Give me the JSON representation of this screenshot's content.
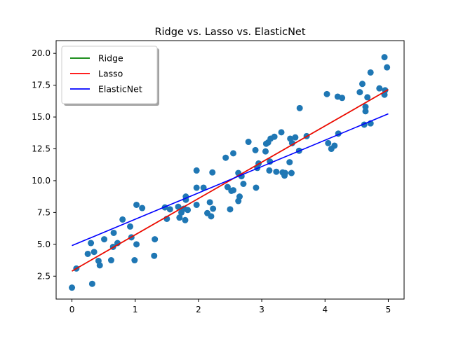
{
  "chart_data": {
    "type": "scatter",
    "title": "Ridge vs. Lasso vs. ElasticNet",
    "xlabel": "",
    "ylabel": "",
    "xlim": [
      -0.25,
      5.25
    ],
    "ylim": [
      0.7,
      21.0
    ],
    "xticks": [
      0,
      1,
      2,
      3,
      4,
      5
    ],
    "yticks": [
      2.5,
      5.0,
      7.5,
      10.0,
      12.5,
      15.0,
      17.5,
      20.0
    ],
    "xtick_labels": [
      "0",
      "1",
      "2",
      "3",
      "4",
      "5"
    ],
    "ytick_labels": [
      "2.5",
      "5.0",
      "7.5",
      "10.0",
      "12.5",
      "15.0",
      "17.5",
      "20.0"
    ],
    "grid": false,
    "legend_position": "top-left",
    "scatter_color": "#1f77b4",
    "points": [
      [
        0.0,
        1.6
      ],
      [
        0.07,
        3.1
      ],
      [
        0.25,
        4.25
      ],
      [
        0.3,
        5.1
      ],
      [
        0.32,
        1.9
      ],
      [
        0.35,
        4.4
      ],
      [
        0.42,
        3.7
      ],
      [
        0.44,
        3.35
      ],
      [
        0.51,
        5.4
      ],
      [
        0.62,
        3.75
      ],
      [
        0.65,
        4.8
      ],
      [
        0.66,
        5.9
      ],
      [
        0.72,
        5.1
      ],
      [
        0.8,
        6.95
      ],
      [
        0.92,
        6.4
      ],
      [
        0.94,
        5.55
      ],
      [
        0.99,
        3.75
      ],
      [
        1.02,
        5.0
      ],
      [
        1.02,
        8.1
      ],
      [
        1.11,
        7.85
      ],
      [
        1.3,
        4.1
      ],
      [
        1.31,
        5.4
      ],
      [
        1.47,
        7.9
      ],
      [
        1.5,
        7.0
      ],
      [
        1.55,
        7.75
      ],
      [
        1.68,
        7.95
      ],
      [
        1.7,
        7.1
      ],
      [
        1.73,
        7.5
      ],
      [
        1.77,
        7.8
      ],
      [
        1.79,
        6.9
      ],
      [
        1.8,
        8.5
      ],
      [
        1.8,
        8.75
      ],
      [
        1.83,
        7.7
      ],
      [
        1.97,
        9.45
      ],
      [
        1.97,
        10.8
      ],
      [
        1.97,
        8.1
      ],
      [
        2.08,
        9.45
      ],
      [
        2.14,
        7.45
      ],
      [
        2.18,
        8.3
      ],
      [
        2.2,
        7.2
      ],
      [
        2.22,
        10.65
      ],
      [
        2.23,
        7.8
      ],
      [
        2.43,
        11.8
      ],
      [
        2.46,
        9.5
      ],
      [
        2.5,
        7.75
      ],
      [
        2.52,
        9.2
      ],
      [
        2.55,
        9.25
      ],
      [
        2.55,
        12.15
      ],
      [
        2.63,
        8.4
      ],
      [
        2.63,
        10.6
      ],
      [
        2.65,
        8.75
      ],
      [
        2.68,
        10.35
      ],
      [
        2.71,
        9.75
      ],
      [
        2.79,
        13.05
      ],
      [
        2.9,
        12.4
      ],
      [
        2.91,
        9.45
      ],
      [
        2.93,
        11.0
      ],
      [
        2.95,
        11.35
      ],
      [
        3.06,
        12.3
      ],
      [
        3.07,
        12.9
      ],
      [
        3.1,
        13.0
      ],
      [
        3.12,
        10.8
      ],
      [
        3.13,
        11.5
      ],
      [
        3.14,
        13.3
      ],
      [
        3.2,
        13.45
      ],
      [
        3.23,
        10.7
      ],
      [
        3.31,
        13.8
      ],
      [
        3.33,
        10.65
      ],
      [
        3.36,
        10.4
      ],
      [
        3.37,
        10.6
      ],
      [
        3.44,
        11.45
      ],
      [
        3.45,
        13.3
      ],
      [
        3.47,
        10.6
      ],
      [
        3.48,
        12.95
      ],
      [
        3.53,
        13.4
      ],
      [
        3.59,
        12.35
      ],
      [
        3.6,
        15.7
      ],
      [
        3.71,
        13.5
      ],
      [
        4.03,
        16.8
      ],
      [
        4.05,
        12.95
      ],
      [
        4.1,
        12.5
      ],
      [
        4.15,
        12.75
      ],
      [
        4.2,
        16.6
      ],
      [
        4.21,
        13.7
      ],
      [
        4.27,
        16.5
      ],
      [
        4.55,
        16.95
      ],
      [
        4.59,
        17.6
      ],
      [
        4.62,
        14.4
      ],
      [
        4.64,
        15.45
      ],
      [
        4.64,
        15.8
      ],
      [
        4.67,
        16.55
      ],
      [
        4.72,
        14.5
      ],
      [
        4.72,
        18.5
      ],
      [
        4.86,
        17.25
      ],
      [
        4.94,
        16.75
      ],
      [
        4.95,
        17.1
      ],
      [
        4.94,
        19.7
      ],
      [
        4.98,
        18.9
      ]
    ],
    "series": [
      {
        "name": "Ridge",
        "color": "#008000",
        "x": [
          0,
          5
        ],
        "y": [
          2.9,
          17.15
        ]
      },
      {
        "name": "Lasso",
        "color": "#ff0000",
        "x": [
          0,
          5
        ],
        "y": [
          2.9,
          17.15
        ]
      },
      {
        "name": "ElasticNet",
        "color": "#0000ff",
        "x": [
          0,
          5
        ],
        "y": [
          4.9,
          15.25
        ]
      }
    ]
  }
}
